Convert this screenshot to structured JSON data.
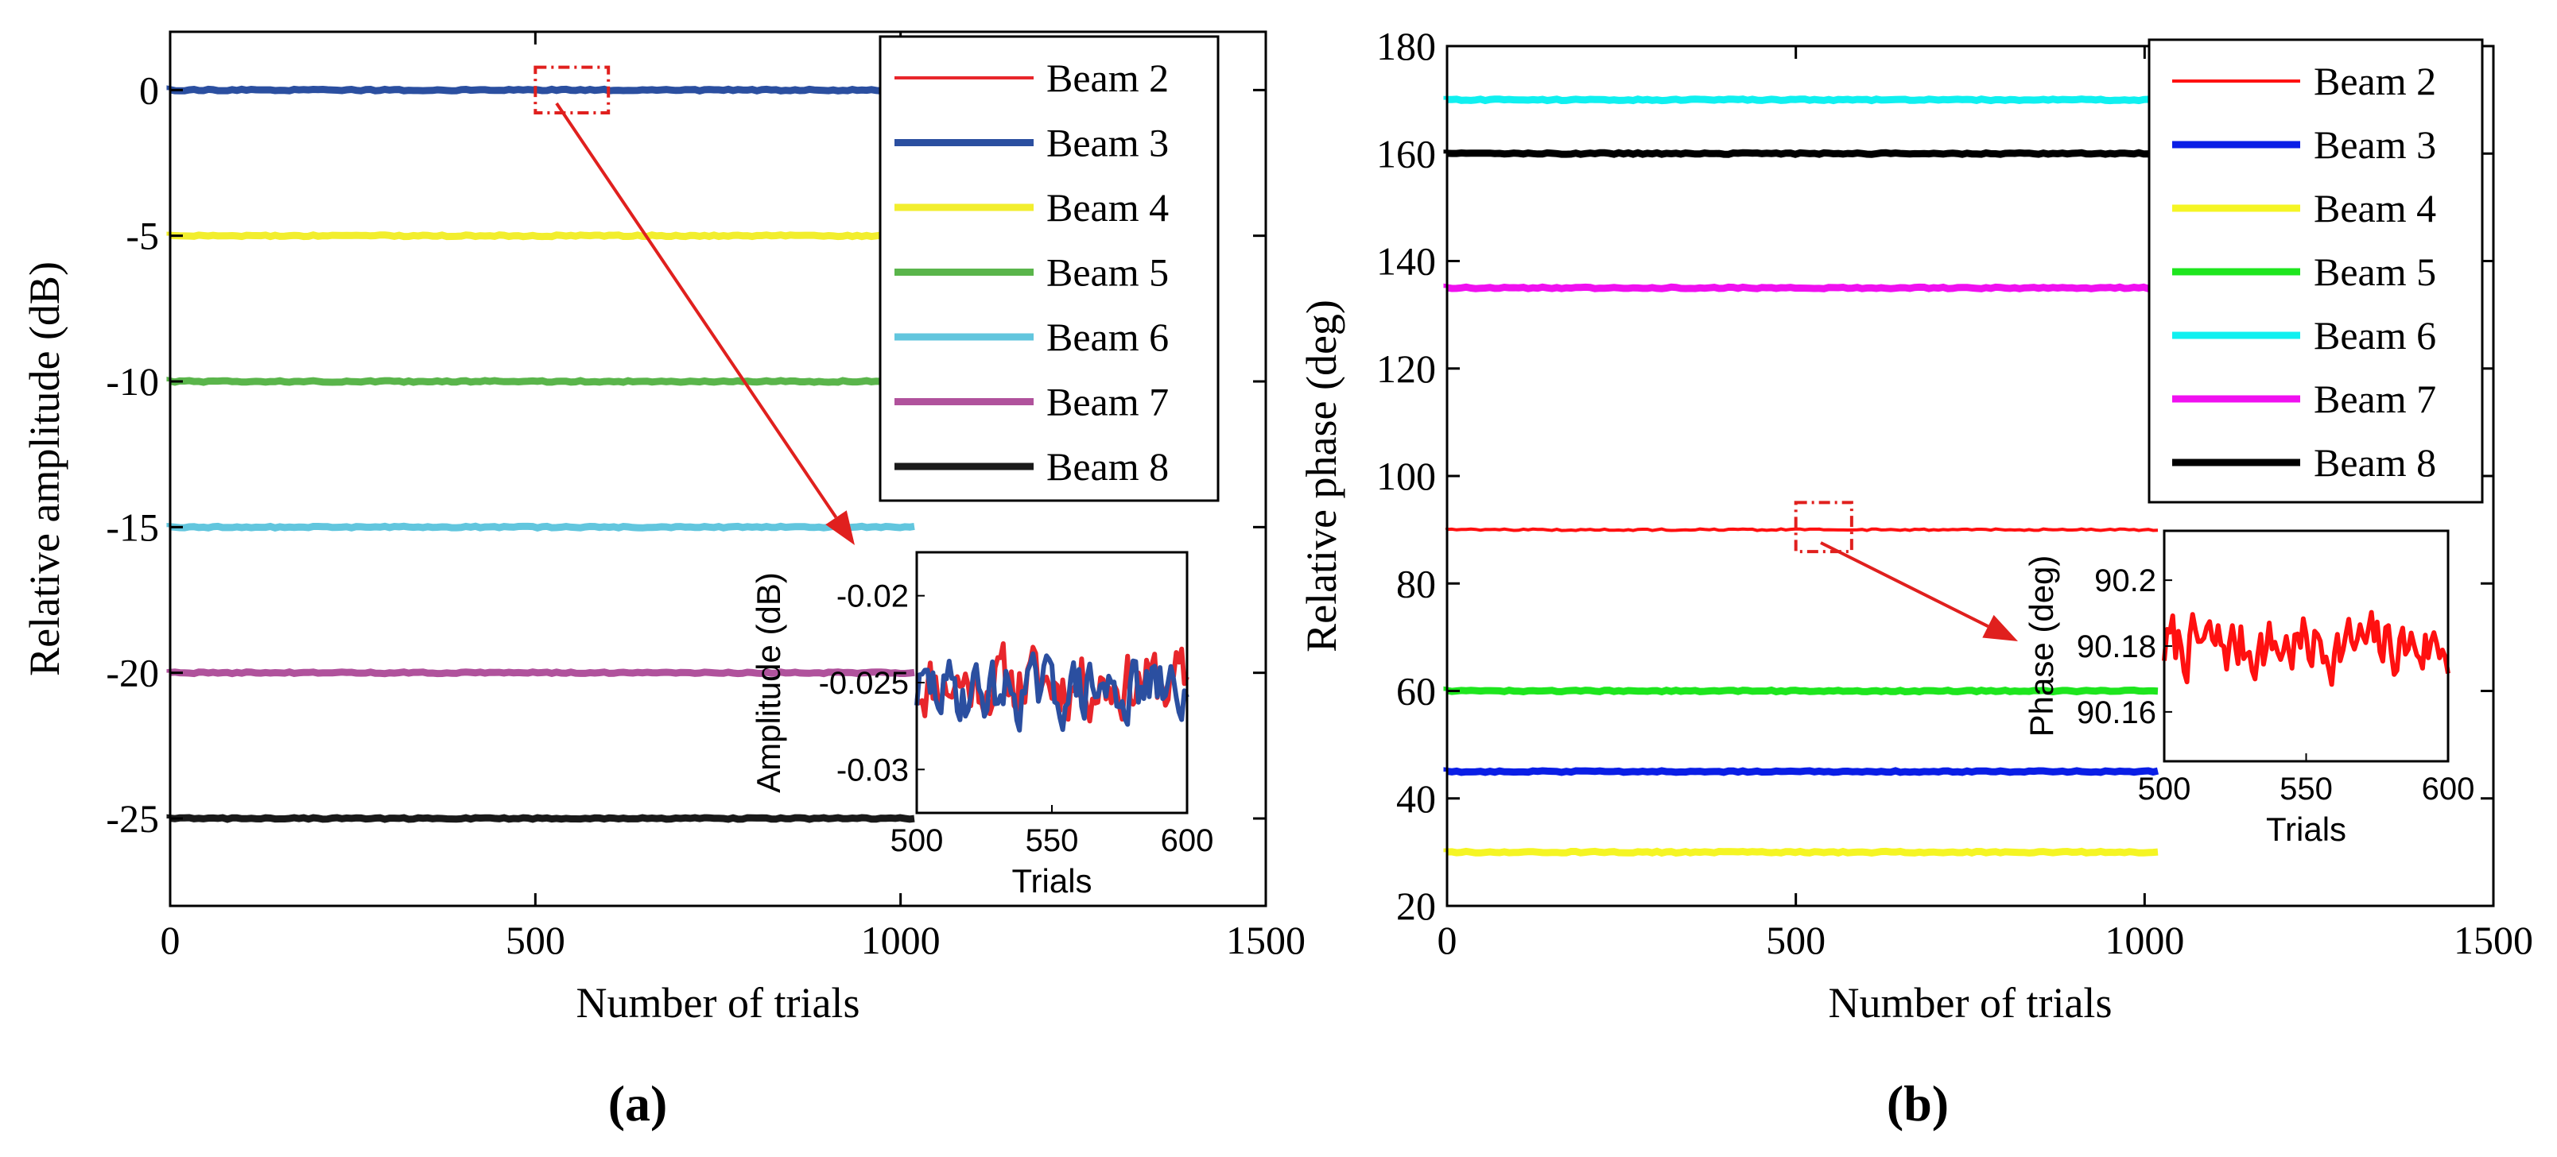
{
  "colors": {
    "panel_a": [
      "#e8262b",
      "#2b4fa0",
      "#f2ee2e",
      "#5ab54b",
      "#62c6de",
      "#b0529c",
      "#1a1a1a"
    ],
    "panel_b": [
      "#ff1010",
      "#0a1ee6",
      "#f5f524",
      "#1ee61e",
      "#10f0f0",
      "#f010f0",
      "#000000"
    ],
    "zoom_box": "#e0201e"
  },
  "chart_data": [
    {
      "id": "a",
      "type": "line",
      "panel_label": "(a)",
      "xlabel": "Number of trials",
      "ylabel": "Relative amplitude (dB)",
      "xlim": [
        0,
        1500
      ],
      "ylim": [
        -28,
        2
      ],
      "xticks": [
        0,
        500,
        1000,
        1500
      ],
      "yticks": [
        0,
        -5,
        -10,
        -15,
        -20,
        -25
      ],
      "ytick_labels": [
        "0",
        "-5",
        "-10",
        "-15",
        "-20",
        "-25"
      ],
      "legend_position": "top-right",
      "series": [
        {
          "name": "Beam 2",
          "value": 0,
          "x_range": [
            0,
            1024
          ]
        },
        {
          "name": "Beam 3",
          "value": 0,
          "x_range": [
            0,
            1024
          ]
        },
        {
          "name": "Beam 4",
          "value": -5,
          "x_range": [
            0,
            1024
          ]
        },
        {
          "name": "Beam 5",
          "value": -10,
          "x_range": [
            0,
            1024
          ]
        },
        {
          "name": "Beam 6",
          "value": -15,
          "x_range": [
            0,
            1024
          ]
        },
        {
          "name": "Beam 7",
          "value": -20,
          "x_range": [
            0,
            1024
          ]
        },
        {
          "name": "Beam 8",
          "value": -25,
          "x_range": [
            0,
            1024
          ]
        }
      ],
      "zoom_region": {
        "x": [
          500,
          600
        ],
        "y": [
          -0.4,
          0.4
        ]
      },
      "inset": {
        "xlabel": "Trials",
        "ylabel": "Amplitude (dB)",
        "xlim": [
          500,
          600
        ],
        "ylim": [
          -0.0325,
          -0.0175
        ],
        "xticks": [
          500,
          550,
          600
        ],
        "yticks": [
          -0.02,
          -0.025,
          -0.03
        ],
        "ytick_labels": [
          "-0.02",
          "-0.025",
          "-0.03"
        ],
        "series": [
          {
            "name": "Beam 2",
            "mean": -0.025,
            "amplitude": 0.003,
            "seed": 11
          },
          {
            "name": "Beam 3",
            "mean": -0.0255,
            "amplitude": 0.0028,
            "seed": 29
          }
        ]
      }
    },
    {
      "id": "b",
      "type": "line",
      "panel_label": "(b)",
      "xlabel": "Number of trials",
      "ylabel": "Relative phase (deg)",
      "xlim": [
        0,
        1500
      ],
      "ylim": [
        20,
        180
      ],
      "xticks": [
        0,
        500,
        1000,
        1500
      ],
      "yticks": [
        20,
        40,
        60,
        80,
        100,
        120,
        140,
        160,
        180
      ],
      "ytick_labels": [
        "20",
        "40",
        "60",
        "80",
        "100",
        "120",
        "140",
        "160",
        "180"
      ],
      "legend_position": "top-right",
      "series": [
        {
          "name": "Beam 2",
          "value": 90,
          "x_range": [
            0,
            1024
          ]
        },
        {
          "name": "Beam 3",
          "value": 45,
          "x_range": [
            0,
            1024
          ]
        },
        {
          "name": "Beam 4",
          "value": 30,
          "x_range": [
            0,
            1024
          ]
        },
        {
          "name": "Beam 5",
          "value": 60,
          "x_range": [
            0,
            1024
          ]
        },
        {
          "name": "Beam 6",
          "value": 170,
          "x_range": [
            0,
            1024
          ]
        },
        {
          "name": "Beam 7",
          "value": 135,
          "x_range": [
            0,
            1024
          ]
        },
        {
          "name": "Beam 8",
          "value": 160,
          "x_range": [
            0,
            1024
          ]
        }
      ],
      "zoom_region": {
        "x": [
          500,
          580
        ],
        "y": [
          88,
          93
        ]
      },
      "inset": {
        "xlabel": "Trials",
        "ylabel": "Phase (deg)",
        "xlim": [
          500,
          600
        ],
        "ylim": [
          90.145,
          90.215
        ],
        "xticks": [
          500,
          550,
          600
        ],
        "yticks": [
          90.2,
          90.18,
          90.16
        ],
        "ytick_labels": [
          "90.2",
          "90.18",
          "90.16"
        ],
        "series": [
          {
            "name": "Beam 2",
            "mean": 90.18,
            "amplitude": 0.015,
            "seed": 7
          }
        ]
      }
    }
  ]
}
